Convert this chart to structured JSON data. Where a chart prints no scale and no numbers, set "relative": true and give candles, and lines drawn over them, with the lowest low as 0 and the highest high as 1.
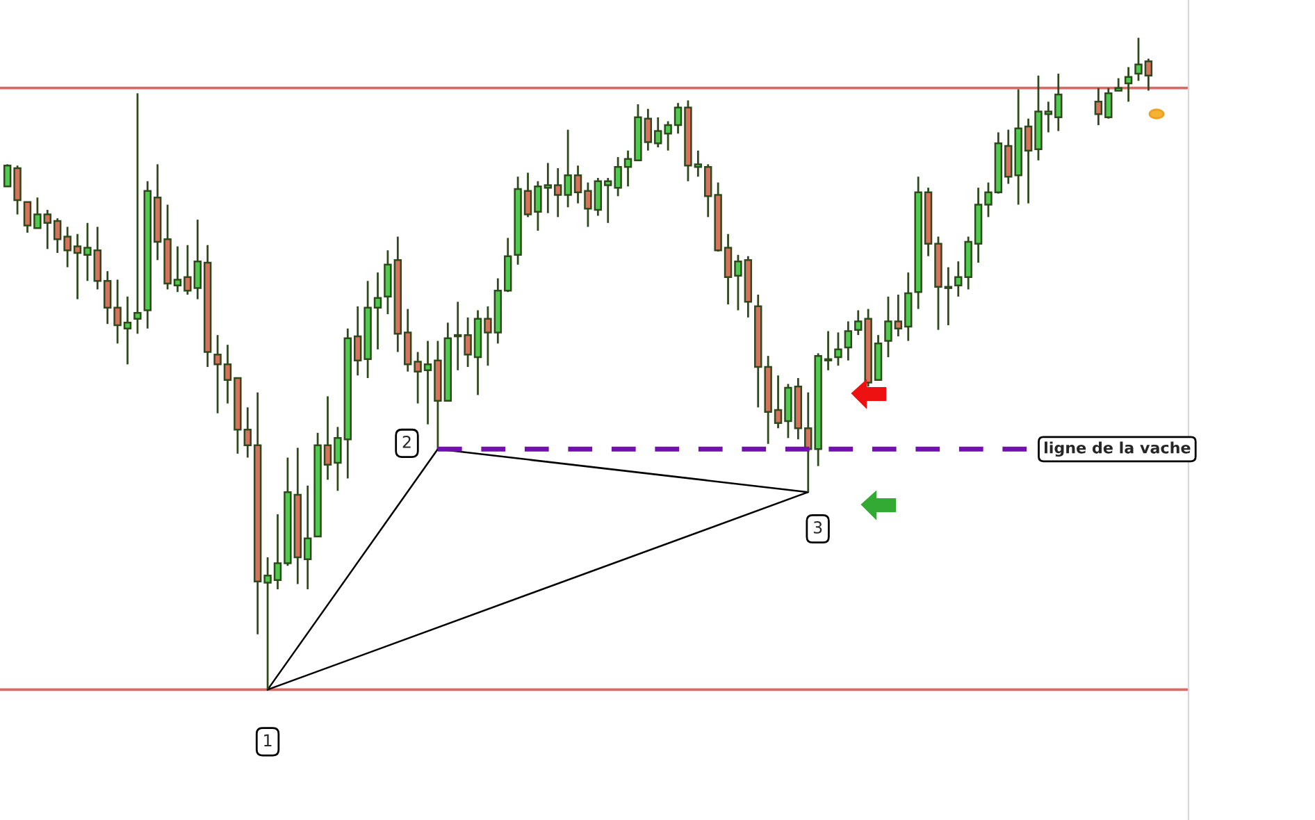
{
  "chart_data": {
    "type": "candlestick",
    "relative": true,
    "categories": [
      null,
      null,
      null,
      null,
      null,
      null,
      null,
      null,
      null,
      null,
      null,
      null,
      null,
      null,
      null,
      null,
      null,
      null,
      null,
      null,
      null,
      null,
      null,
      null,
      null,
      null,
      null,
      null,
      null,
      null,
      null,
      null,
      null,
      null,
      null,
      null,
      null,
      null,
      null,
      null,
      null,
      null,
      null,
      null,
      null,
      null,
      null,
      null,
      null,
      null,
      null,
      null,
      null,
      null,
      null,
      null,
      null,
      null,
      null,
      null,
      null,
      null,
      null,
      null,
      null,
      null,
      null,
      null,
      null,
      null,
      null,
      null,
      null,
      null,
      null,
      null,
      null,
      null,
      null,
      null,
      null,
      null,
      null,
      null,
      null,
      null,
      null,
      null,
      null,
      null,
      null,
      null,
      null,
      null,
      null,
      null,
      null,
      null,
      null,
      null,
      null,
      null,
      null,
      null,
      null,
      null,
      null,
      null,
      null,
      null,
      null,
      null,
      null,
      null,
      null
    ],
    "ohlc": [
      [
        0.772,
        0.806,
        0.772,
        0.804
      ],
      [
        0.8,
        0.804,
        0.729,
        0.751
      ],
      [
        0.748,
        0.748,
        0.701,
        0.712
      ],
      [
        0.708,
        0.755,
        0.708,
        0.729
      ],
      [
        0.729,
        0.736,
        0.676,
        0.716
      ],
      [
        0.719,
        0.723,
        0.67,
        0.691
      ],
      [
        0.695,
        0.71,
        0.648,
        0.674
      ],
      [
        0.68,
        0.699,
        0.599,
        0.67
      ],
      [
        0.667,
        0.716,
        0.627,
        0.678
      ],
      [
        0.674,
        0.71,
        0.614,
        0.627
      ],
      [
        0.627,
        0.642,
        0.561,
        0.586
      ],
      [
        0.586,
        0.629,
        0.531,
        0.559
      ],
      [
        0.554,
        0.603,
        0.499,
        0.563
      ],
      [
        0.569,
        0.915,
        0.546,
        0.578
      ],
      [
        0.582,
        0.78,
        0.554,
        0.765
      ],
      [
        0.755,
        0.806,
        0.659,
        0.687
      ],
      [
        0.691,
        0.744,
        0.614,
        0.623
      ],
      [
        0.62,
        0.68,
        0.61,
        0.629
      ],
      [
        0.633,
        0.682,
        0.606,
        0.612
      ],
      [
        0.616,
        0.721,
        0.599,
        0.657
      ],
      [
        0.655,
        0.682,
        0.495,
        0.518
      ],
      [
        0.514,
        0.544,
        0.424,
        0.499
      ],
      [
        0.499,
        0.529,
        0.439,
        0.475
      ],
      [
        0.478,
        0.478,
        0.362,
        0.399
      ],
      [
        0.399,
        0.433,
        0.356,
        0.375
      ],
      [
        0.375,
        0.456,
        0.085,
        0.166
      ],
      [
        0.164,
        0.203,
        0,
        0.175
      ],
      [
        0.168,
        0.269,
        0.154,
        0.194
      ],
      [
        0.194,
        0.356,
        0.19,
        0.303
      ],
      [
        0.299,
        0.371,
        0.162,
        0.203
      ],
      [
        0.2,
        0.313,
        0.154,
        0.232
      ],
      [
        0.235,
        0.394,
        0.235,
        0.375
      ],
      [
        0.375,
        0.45,
        0.322,
        0.345
      ],
      [
        0.348,
        0.403,
        0.305,
        0.386
      ],
      [
        0.384,
        0.554,
        0.324,
        0.539
      ],
      [
        0.542,
        0.588,
        0.482,
        0.505
      ],
      [
        0.507,
        0.627,
        0.478,
        0.586
      ],
      [
        0.586,
        0.64,
        0.522,
        0.601
      ],
      [
        0.603,
        0.674,
        0.576,
        0.652
      ],
      [
        0.659,
        0.695,
        0.518,
        0.546
      ],
      [
        0.548,
        0.584,
        0.488,
        0.499
      ],
      [
        0.503,
        0.518,
        0.439,
        0.488
      ],
      [
        0.49,
        0.535,
        0.407,
        0.499
      ],
      [
        0.505,
        0.535,
        0.369,
        0.443
      ],
      [
        0.443,
        0.563,
        0.443,
        0.539
      ],
      [
        0.542,
        0.595,
        0.49,
        0.544
      ],
      [
        0.544,
        0.571,
        0.495,
        0.514
      ],
      [
        0.51,
        0.582,
        0.452,
        0.569
      ],
      [
        0.569,
        0.588,
        0.497,
        0.548
      ],
      [
        0.548,
        0.631,
        0.531,
        0.612
      ],
      [
        0.612,
        0.693,
        0.61,
        0.665
      ],
      [
        0.667,
        0.787,
        0.652,
        0.768
      ],
      [
        0.765,
        0.793,
        0.725,
        0.729
      ],
      [
        0.733,
        0.78,
        0.704,
        0.772
      ],
      [
        0.77,
        0.808,
        0.731,
        0.774
      ],
      [
        0.774,
        0.8,
        0.725,
        0.759
      ],
      [
        0.759,
        0.859,
        0.74,
        0.789
      ],
      [
        0.789,
        0.804,
        0.746,
        0.763
      ],
      [
        0.765,
        0.778,
        0.71,
        0.738
      ],
      [
        0.736,
        0.785,
        0.727,
        0.78
      ],
      [
        0.774,
        0.785,
        0.716,
        0.78
      ],
      [
        0.77,
        0.817,
        0.757,
        0.802
      ],
      [
        0.802,
        0.827,
        0.772,
        0.814
      ],
      [
        0.812,
        0.898,
        0.812,
        0.878
      ],
      [
        0.876,
        0.891,
        0.827,
        0.84
      ],
      [
        0.838,
        0.878,
        0.832,
        0.857
      ],
      [
        0.853,
        0.872,
        0.827,
        0.866
      ],
      [
        0.866,
        0.9,
        0.853,
        0.893
      ],
      [
        0.893,
        0.904,
        0.78,
        0.804
      ],
      [
        0.802,
        0.827,
        0.787,
        0.806
      ],
      [
        0.802,
        0.806,
        0.725,
        0.757
      ],
      [
        0.759,
        0.778,
        0.672,
        0.674
      ],
      [
        0.678,
        0.699,
        0.591,
        0.633
      ],
      [
        0.635,
        0.667,
        0.582,
        0.657
      ],
      [
        0.659,
        0.665,
        0.571,
        0.595
      ],
      [
        0.588,
        0.606,
        0.433,
        0.495
      ],
      [
        0.495,
        0.512,
        0.377,
        0.426
      ],
      [
        0.429,
        0.482,
        0.401,
        0.409
      ],
      [
        0.412,
        0.469,
        0.386,
        0.463
      ],
      [
        0.465,
        0.478,
        0.384,
        0.401
      ],
      [
        0.401,
        0.456,
        0.303,
        0.369
      ],
      [
        0.369,
        0.516,
        0.343,
        0.512
      ],
      [
        0.505,
        0.55,
        0.49,
        0.507
      ],
      [
        0.51,
        0.548,
        0.497,
        0.522
      ],
      [
        0.525,
        0.565,
        0.505,
        0.55
      ],
      [
        0.552,
        0.582,
        0.544,
        0.565
      ],
      [
        0.569,
        0.584,
        0.465,
        0.471
      ],
      [
        0.475,
        0.544,
        0.475,
        0.531
      ],
      [
        0.535,
        0.603,
        0.51,
        0.565
      ],
      [
        0.565,
        0.606,
        0.542,
        0.554
      ],
      [
        0.557,
        0.64,
        0.535,
        0.608
      ],
      [
        0.61,
        0.787,
        0.584,
        0.763
      ],
      [
        0.763,
        0.77,
        0.665,
        0.684
      ],
      [
        0.684,
        0.695,
        0.552,
        0.618
      ],
      [
        0.616,
        0.648,
        0.559,
        0.618
      ],
      [
        0.62,
        0.657,
        0.603,
        0.633
      ],
      [
        0.633,
        0.695,
        0.614,
        0.687
      ],
      [
        0.684,
        0.77,
        0.655,
        0.744
      ],
      [
        0.744,
        0.778,
        0.725,
        0.763
      ],
      [
        0.763,
        0.855,
        0.761,
        0.838
      ],
      [
        0.834,
        0.859,
        0.776,
        0.787
      ],
      [
        0.789,
        0.921,
        0.744,
        0.861
      ],
      [
        0.864,
        0.876,
        0.746,
        0.827
      ],
      [
        0.829,
        0.942,
        0.812,
        0.887
      ],
      [
        0.883,
        0.902,
        0.855,
        0.887
      ],
      [
        0.878,
        0.945,
        0.857,
        0.913
      ],
      null,
      null,
      null,
      [
        0.902,
        0.923,
        0.866,
        0.883
      ],
      [
        0.878,
        0.923,
        0.876,
        0.915
      ],
      [
        0.919,
        0.938,
        0.919,
        0.923
      ],
      [
        0.93,
        0.955,
        0.902,
        0.94
      ],
      [
        0.945,
        1,
        0.934,
        0.959
      ],
      [
        0.964,
        0.968,
        0.919,
        0.942
      ]
    ],
    "colors": [
      "#4fca4f",
      "#d6735f",
      "#d6735f",
      "#4fca4f",
      "#d6735f",
      "#d6735f",
      "#d6735f",
      "#d6735f",
      "#4fca4f",
      "#d6735f",
      "#d6735f",
      "#d6735f",
      "#4fca4f",
      "#4fca4f",
      "#4fca4f",
      "#d6735f",
      "#d6735f",
      "#4fca4f",
      "#d6735f",
      "#4fca4f",
      "#d6735f",
      "#d6735f",
      "#d6735f",
      "#d6735f",
      "#d6735f",
      "#d6735f",
      "#4fca4f",
      "#4fca4f",
      "#4fca4f",
      "#d6735f",
      "#4fca4f",
      "#4fca4f",
      "#d6735f",
      "#4fca4f",
      "#4fca4f",
      "#d6735f",
      "#4fca4f",
      "#4fca4f",
      "#4fca4f",
      "#d6735f",
      "#d6735f",
      "#d6735f",
      "#4fca4f",
      "#d6735f",
      "#4fca4f",
      "#4fca4f",
      "#d6735f",
      "#4fca4f",
      "#d6735f",
      "#4fca4f",
      "#4fca4f",
      "#4fca4f",
      "#d6735f",
      "#4fca4f",
      "#4fca4f",
      "#d6735f",
      "#4fca4f",
      "#d6735f",
      "#d6735f",
      "#4fca4f",
      "#4fca4f",
      "#4fca4f",
      "#4fca4f",
      "#4fca4f",
      "#d6735f",
      "#4fca4f",
      "#4fca4f",
      "#4fca4f",
      "#d6735f",
      "#4fca4f",
      "#d6735f",
      "#d6735f",
      "#d6735f",
      "#4fca4f",
      "#d6735f",
      "#d6735f",
      "#d6735f",
      "#d6735f",
      "#4fca4f",
      "#d6735f",
      "#d6735f",
      "#4fca4f",
      "#4fca4f",
      "#4fca4f",
      "#4fca4f",
      "#4fca4f",
      "#d6735f",
      "#4fca4f",
      "#4fca4f",
      "#d6735f",
      "#4fca4f",
      "#4fca4f",
      "#d6735f",
      "#d6735f",
      "#4fca4f",
      "#4fca4f",
      "#4fca4f",
      "#4fca4f",
      "#4fca4f",
      "#4fca4f",
      "#d6735f",
      "#4fca4f",
      "#d6735f",
      "#4fca4f",
      "#4fca4f",
      "#4fca4f",
      null,
      null,
      null,
      "#d6735f",
      "#4fca4f",
      "#4fca4f",
      "#4fca4f",
      "#4fca4f",
      "#d6735f"
    ],
    "series": [
      {
        "type": "line",
        "color": "#000000",
        "values": [
          null,
          null,
          null,
          null,
          null,
          null,
          null,
          null,
          null,
          null,
          null,
          null,
          null,
          null,
          null,
          null,
          null,
          null,
          null,
          null,
          null,
          null,
          null,
          null,
          null,
          null,
          0,
          null,
          null,
          null,
          null,
          null,
          null,
          null,
          null,
          null,
          null,
          null,
          null,
          null,
          null,
          null,
          null,
          0.369,
          null,
          null,
          null,
          null,
          null,
          null,
          null,
          null,
          null,
          null,
          null,
          null,
          null,
          null,
          null,
          null,
          null,
          null,
          null,
          null,
          null,
          null,
          null,
          null,
          null,
          null,
          null,
          null,
          null,
          null,
          null,
          null,
          null,
          null,
          null,
          null,
          0.303,
          null,
          null,
          null,
          null,
          null,
          null,
          null,
          null,
          null,
          null,
          null,
          null,
          null,
          null,
          null,
          null,
          null,
          null,
          null,
          null,
          null,
          null,
          null,
          null,
          null,
          null,
          null,
          null,
          null,
          null,
          null,
          null,
          null,
          null
        ]
      },
      {
        "type": "line",
        "color": "#000000",
        "values": [
          null,
          null,
          null,
          null,
          null,
          null,
          null,
          null,
          null,
          null,
          null,
          null,
          null,
          null,
          null,
          null,
          null,
          null,
          null,
          null,
          null,
          null,
          null,
          null,
          null,
          null,
          0,
          null,
          null,
          null,
          null,
          null,
          null,
          null,
          null,
          null,
          null,
          null,
          null,
          null,
          null,
          null,
          null,
          null,
          null,
          null,
          null,
          null,
          null,
          null,
          null,
          null,
          null,
          null,
          null,
          null,
          null,
          null,
          null,
          null,
          null,
          null,
          null,
          null,
          null,
          null,
          null,
          null,
          null,
          null,
          null,
          null,
          null,
          null,
          null,
          null,
          null,
          null,
          null,
          null,
          0.303,
          null,
          null,
          null,
          null,
          null,
          null,
          null,
          null,
          null,
          null,
          null,
          null,
          null,
          null,
          null,
          null,
          null,
          null,
          null,
          null,
          null,
          null,
          null,
          null,
          null,
          null,
          null,
          null,
          null,
          null,
          null,
          null,
          null,
          null
        ]
      },
      {
        "type": "line",
        "name": "ligne de la vache",
        "color": "#7010b0",
        "line_style": "dashed",
        "values": [
          null,
          null,
          null,
          null,
          null,
          null,
          null,
          null,
          null,
          null,
          null,
          null,
          null,
          null,
          null,
          null,
          null,
          null,
          null,
          null,
          null,
          null,
          null,
          null,
          null,
          null,
          null,
          null,
          null,
          null,
          null,
          null,
          null,
          null,
          null,
          null,
          null,
          null,
          null,
          null,
          null,
          null,
          null,
          0.369,
          0.369,
          0.369,
          0.369,
          0.369,
          0.369,
          0.369,
          0.369,
          0.369,
          0.369,
          0.369,
          0.369,
          0.369,
          0.369,
          0.369,
          0.369,
          0.369,
          0.369,
          0.369,
          0.369,
          0.369,
          0.369,
          0.369,
          0.369,
          0.369,
          0.369,
          0.369,
          0.369,
          0.369,
          0.369,
          0.369,
          0.369,
          0.369,
          0.369,
          0.369,
          0.369,
          0.369,
          0.369,
          0.369,
          0.369,
          0.369,
          0.369,
          0.369,
          0.369,
          0.369,
          0.369,
          0.369,
          0.369,
          0.369,
          0.369,
          0.369,
          0.369,
          0.369,
          0.369,
          0.369,
          0.369,
          0.369,
          0.369,
          0.369,
          0.369,
          null,
          null,
          null,
          null,
          null,
          null,
          null,
          null,
          null,
          null,
          null,
          null
        ]
      }
    ],
    "ref_lines": [
      {
        "axis": "y",
        "value": 0.923,
        "color": "#e06666"
      },
      {
        "axis": "y",
        "value": 0,
        "color": "#e06666"
      }
    ],
    "annotations": [
      "1",
      "2",
      "3"
    ]
  }
}
